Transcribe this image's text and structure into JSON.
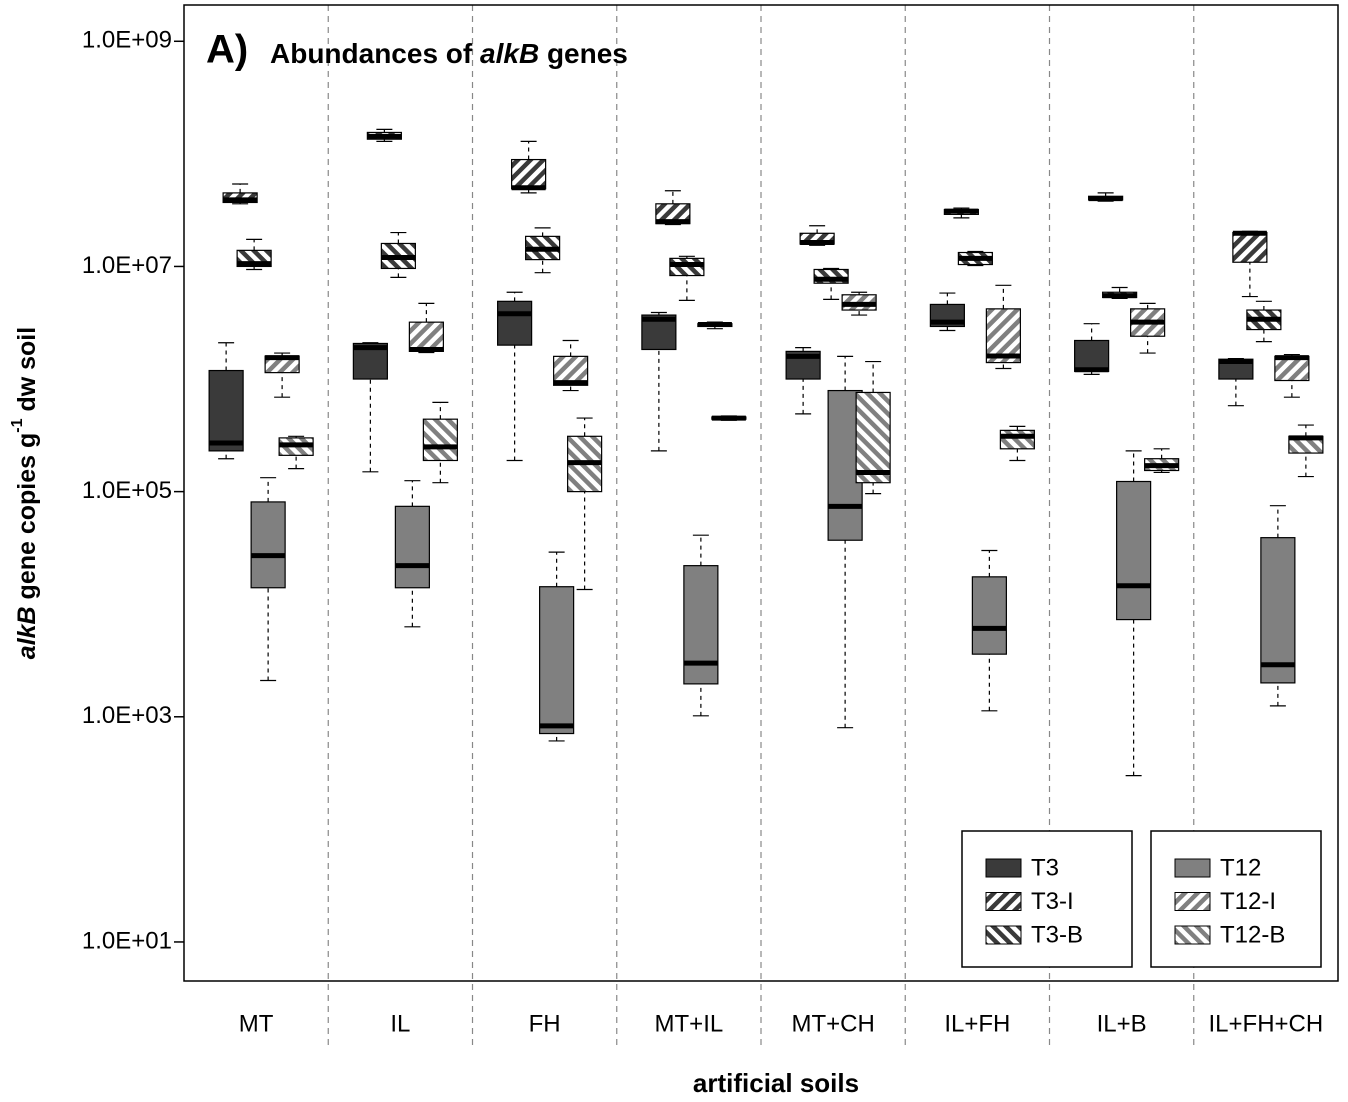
{
  "chart_data": {
    "type": "box",
    "title": {
      "label": "A)",
      "parts": [
        "Abundances of ",
        "alkB",
        " genes"
      ]
    },
    "x_label": "artificial soils",
    "y_label": [
      "alkB",
      " gene copies g",
      "-1",
      " dw soil"
    ],
    "log_y": true,
    "ylim": [
      4.5,
      2100000000
    ],
    "yticks": [
      {
        "value": 10,
        "label": "1.0E+01"
      },
      {
        "value": 1000,
        "label": "1.0E+03"
      },
      {
        "value": 100000,
        "label": "1.0E+05"
      },
      {
        "value": 10000000,
        "label": "1.0E+07"
      },
      {
        "value": 1000000000,
        "label": "1.0E+09"
      }
    ],
    "legend": "lower right",
    "categories": [
      "MT",
      "IL",
      "FH",
      "MT+IL",
      "MT+CH",
      "IL+FH",
      "IL+B",
      "IL+FH+CH"
    ],
    "series": [
      {
        "name": "T3",
        "color": "#3a3a3a",
        "pattern": "solid",
        "values": [
          [
            196000,
            230000,
            270000,
            1190000,
            2100000
          ],
          [
            150000,
            1000000,
            1900000,
            2070000,
            2100000
          ],
          [
            189000,
            2000000,
            3800000,
            4900000,
            5900000
          ],
          [
            230000,
            1830000,
            3400000,
            3700000,
            3900000
          ],
          [
            490000,
            1000000,
            1590000,
            1760000,
            1900000
          ],
          [
            2700000,
            2930000,
            3200000,
            4600000,
            5800000
          ],
          [
            1100000,
            1170000,
            1210000,
            2200000,
            3100000
          ],
          [
            580000,
            1000000,
            1430000,
            1500000,
            1520000
          ]
        ]
      },
      {
        "name": "T3-I",
        "color": "#3a3a3a",
        "pattern": "forward",
        "values": [
          [
            36000000,
            37000000,
            39000000,
            45000000,
            54000000
          ],
          [
            129000000,
            135000000,
            143000000,
            155000000,
            165000000
          ],
          [
            45000000,
            49000000,
            50000000,
            89000000,
            129000000
          ],
          [
            23600000,
            24000000,
            25000000,
            36000000,
            47000000
          ],
          [
            15400000,
            15800000,
            16300000,
            19700000,
            23000000
          ],
          [
            27000000,
            29000000,
            31000000,
            32000000,
            33000000
          ],
          [
            38000000,
            39000000,
            40000000,
            42000000,
            45000000
          ],
          [
            5400000,
            10900000,
            19700000,
            20000000,
            20500000
          ]
        ]
      },
      {
        "name": "T3-B",
        "color": "#3a3a3a",
        "pattern": "backward",
        "values": [
          [
            9400000,
            10000000,
            10600000,
            13900000,
            17400000
          ],
          [
            8000000,
            9600000,
            12000000,
            16000000,
            20000000
          ],
          [
            8800000,
            11500000,
            14200000,
            18500000,
            22000000
          ],
          [
            5000000,
            8300000,
            10400000,
            11800000,
            12300000
          ],
          [
            5100000,
            7100000,
            7700000,
            9400000,
            9600000
          ],
          [
            10200000,
            10400000,
            11800000,
            13300000,
            13600000
          ],
          [
            5200000,
            5300000,
            5500000,
            5900000,
            6500000
          ],
          [
            2150000,
            2750000,
            3400000,
            4100000,
            4900000
          ]
        ]
      },
      {
        "name": "T12",
        "color": "#808080",
        "pattern": "solid",
        "values": [
          [
            2100,
            14000,
            27000,
            81000,
            133000
          ],
          [
            6300,
            14000,
            22000,
            74000,
            125000
          ],
          [
            610,
            710,
            830,
            14300,
            29000
          ],
          [
            1020,
            1960,
            3000,
            22000,
            41000
          ],
          [
            800,
            37000,
            74000,
            790000,
            1590000
          ],
          [
            1130,
            3600,
            6100,
            17500,
            30000
          ],
          [
            300,
            7300,
            14600,
            123000,
            230000
          ],
          [
            1250,
            2000,
            2900,
            39000,
            75000
          ]
        ]
      },
      {
        "name": "T12-I",
        "color": "#808080",
        "pattern": "forward",
        "values": [
          [
            690000,
            1140000,
            1550000,
            1600000,
            1700000
          ],
          [
            1720000,
            1760000,
            1830000,
            3200000,
            4700000
          ],
          [
            790000,
            880000,
            930000,
            1590000,
            2200000
          ],
          [
            2800000,
            2930000,
            3050000,
            3100000,
            3200000
          ],
          [
            3700000,
            4100000,
            4600000,
            5600000,
            5900000
          ],
          [
            1240000,
            1400000,
            1600000,
            4200000,
            6800000
          ],
          [
            1700000,
            2400000,
            3200000,
            4200000,
            4700000
          ],
          [
            690000,
            970000,
            1550000,
            1590000,
            1650000
          ]
        ]
      },
      {
        "name": "T12-B",
        "color": "#808080",
        "pattern": "backward",
        "values": [
          [
            160000,
            210000,
            260000,
            300000,
            310000
          ],
          [
            120000,
            189000,
            250000,
            440000,
            620000
          ],
          [
            13500,
            100000,
            181000,
            310000,
            450000
          ],
          [
            430000,
            440000,
            450000,
            460000,
            470000
          ],
          [
            96000,
            120000,
            148000,
            760000,
            1430000
          ],
          [
            189000,
            240000,
            310000,
            350000,
            380000
          ],
          [
            148000,
            154000,
            170000,
            196000,
            240000
          ],
          [
            136000,
            220000,
            300000,
            310000,
            390000
          ]
        ]
      }
    ]
  }
}
